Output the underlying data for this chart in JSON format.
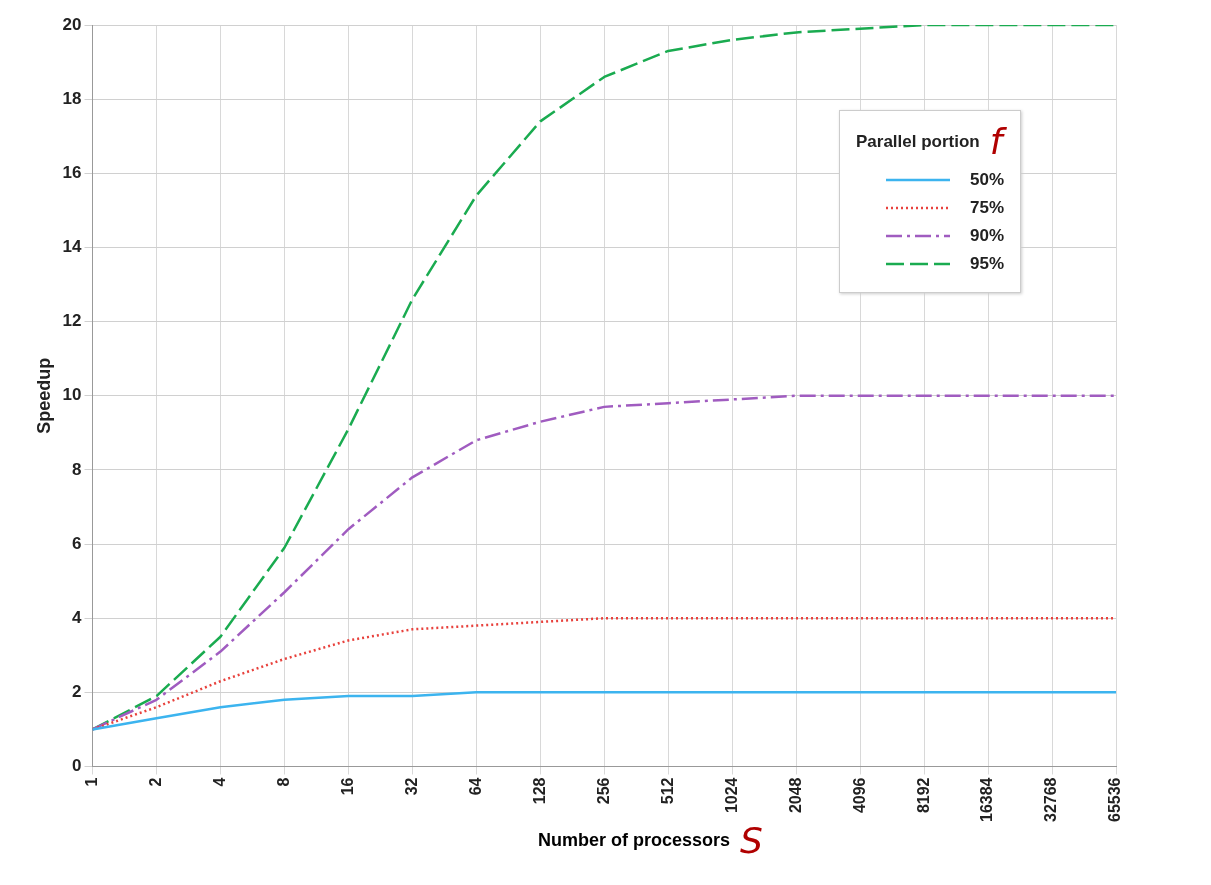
{
  "chart_data": {
    "type": "line",
    "xlabel": "Number of processors",
    "ylabel": "Speedup",
    "legend_title": "Parallel portion",
    "annotations": [
      "f",
      "S"
    ],
    "categories": [
      "1",
      "2",
      "4",
      "8",
      "16",
      "32",
      "64",
      "128",
      "256",
      "512",
      "1024",
      "2048",
      "4096",
      "8192",
      "16384",
      "32768",
      "65536"
    ],
    "ylim": [
      0,
      20
    ],
    "yticks": [
      0,
      2,
      4,
      6,
      8,
      10,
      12,
      14,
      16,
      18,
      20
    ],
    "grid": true,
    "legend": "top right",
    "marker": "none",
    "series": [
      {
        "name": "50%",
        "color": "#3cb4ef",
        "line_style": "solid",
        "values": [
          1.0,
          1.3,
          1.6,
          1.8,
          1.9,
          1.9,
          2.0,
          2.0,
          2.0,
          2.0,
          2.0,
          2.0,
          2.0,
          2.0,
          2.0,
          2.0,
          2.0
        ]
      },
      {
        "name": "75%",
        "color": "#e8413c",
        "line_style": "dotted",
        "values": [
          1.0,
          1.6,
          2.3,
          2.9,
          3.4,
          3.7,
          3.8,
          3.9,
          4.0,
          4.0,
          4.0,
          4.0,
          4.0,
          4.0,
          4.0,
          4.0,
          4.0
        ]
      },
      {
        "name": "90%",
        "color": "#a05cc0",
        "line_style": "dashdot",
        "values": [
          1.0,
          1.8,
          3.1,
          4.7,
          6.4,
          7.8,
          8.8,
          9.3,
          9.7,
          9.8,
          9.9,
          10.0,
          10.0,
          10.0,
          10.0,
          10.0,
          10.0
        ]
      },
      {
        "name": "95%",
        "color": "#1aab50",
        "line_style": "dashed",
        "values": [
          1.0,
          1.9,
          3.5,
          5.9,
          9.1,
          12.6,
          15.4,
          17.4,
          18.6,
          19.3,
          19.6,
          19.8,
          19.9,
          20.0,
          20.0,
          20.0,
          20.0
        ]
      }
    ]
  }
}
